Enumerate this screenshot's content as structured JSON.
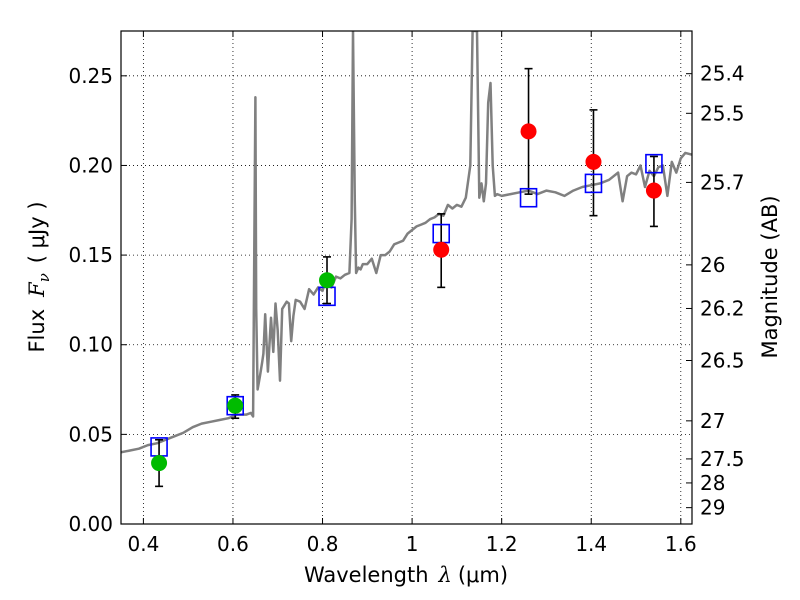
{
  "chart_data": {
    "type": "line",
    "xlabel_text": "Wavelength",
    "xlabel_symbol": "λ",
    "xlabel_unit": "(μm)",
    "ylabel_text": "Flux",
    "ylabel_symbol": "F",
    "ylabel_subscript": "ν",
    "ylabel_unit": "( μJy )",
    "y2label": "Magnitude (AB)",
    "xlim": [
      0.35,
      1.625
    ],
    "ylim": [
      0.0,
      0.275
    ],
    "grid": true,
    "xticks": [
      0.4,
      0.6,
      0.8,
      1.0,
      1.2,
      1.4,
      1.6
    ],
    "xtick_labels": [
      "0.4",
      "0.6",
      "0.8",
      "1",
      "1.2",
      "1.4",
      "1.6"
    ],
    "yticks": [
      0.0,
      0.05,
      0.1,
      0.15,
      0.2,
      0.25
    ],
    "ytick_labels": [
      "0.00",
      "0.05",
      "0.10",
      "0.15",
      "0.20",
      "0.25"
    ],
    "mag_ticks": [
      25.4,
      25.5,
      25.7,
      26,
      26.2,
      26.5,
      27,
      27.5,
      28,
      29
    ],
    "mag_tick_labels": [
      "25.4",
      "25.5",
      "25.7",
      "26",
      "26.2",
      "26.5",
      "27",
      "27.5",
      "28",
      "29"
    ],
    "colors": {
      "spectrum": "#808080",
      "model_box": "#0000ff",
      "obs_green": "#00bb00",
      "obs_red": "#ff0000",
      "errorbar": "#000000"
    },
    "spectrum": {
      "x": [
        0.35,
        0.37,
        0.39,
        0.41,
        0.43,
        0.45,
        0.47,
        0.49,
        0.51,
        0.53,
        0.55,
        0.57,
        0.59,
        0.61,
        0.63,
        0.64,
        0.645,
        0.648,
        0.65,
        0.652,
        0.655,
        0.66,
        0.665,
        0.668,
        0.672,
        0.678,
        0.685,
        0.69,
        0.695,
        0.7,
        0.705,
        0.71,
        0.72,
        0.725,
        0.73,
        0.735,
        0.74,
        0.75,
        0.76,
        0.77,
        0.78,
        0.79,
        0.8,
        0.805,
        0.81,
        0.82,
        0.83,
        0.84,
        0.85,
        0.86,
        0.865,
        0.868,
        0.872,
        0.875,
        0.88,
        0.885,
        0.89,
        0.9,
        0.91,
        0.92,
        0.93,
        0.94,
        0.95,
        0.96,
        0.97,
        0.98,
        0.99,
        1.0,
        1.01,
        1.02,
        1.03,
        1.04,
        1.05,
        1.06,
        1.07,
        1.08,
        1.09,
        1.1,
        1.11,
        1.12,
        1.13,
        1.135,
        1.14,
        1.145,
        1.15,
        1.155,
        1.16,
        1.165,
        1.17,
        1.175,
        1.18,
        1.185,
        1.19,
        1.2,
        1.22,
        1.24,
        1.26,
        1.28,
        1.3,
        1.32,
        1.34,
        1.36,
        1.38,
        1.4,
        1.42,
        1.44,
        1.46,
        1.47,
        1.48,
        1.49,
        1.5,
        1.51,
        1.52,
        1.53,
        1.54,
        1.55,
        1.56,
        1.57,
        1.58,
        1.59,
        1.6,
        1.61,
        1.625
      ],
      "y": [
        0.04,
        0.041,
        0.042,
        0.044,
        0.045,
        0.047,
        0.049,
        0.051,
        0.054,
        0.056,
        0.057,
        0.058,
        0.059,
        0.061,
        0.061,
        0.062,
        0.06,
        0.17,
        0.238,
        0.12,
        0.075,
        0.082,
        0.09,
        0.095,
        0.117,
        0.085,
        0.115,
        0.096,
        0.123,
        0.108,
        0.08,
        0.12,
        0.124,
        0.123,
        0.102,
        0.116,
        0.125,
        0.124,
        0.12,
        0.131,
        0.128,
        0.132,
        0.13,
        0.134,
        0.133,
        0.132,
        0.138,
        0.137,
        0.139,
        0.14,
        0.17,
        0.275,
        0.18,
        0.14,
        0.143,
        0.142,
        0.145,
        0.145,
        0.148,
        0.14,
        0.15,
        0.15,
        0.152,
        0.156,
        0.157,
        0.158,
        0.162,
        0.164,
        0.166,
        0.167,
        0.168,
        0.17,
        0.171,
        0.173,
        0.172,
        0.178,
        0.176,
        0.178,
        0.177,
        0.182,
        0.2,
        0.275,
        0.275,
        0.275,
        0.182,
        0.19,
        0.18,
        0.19,
        0.235,
        0.246,
        0.2,
        0.183,
        0.184,
        0.183,
        0.184,
        0.185,
        0.186,
        0.184,
        0.186,
        0.185,
        0.183,
        0.186,
        0.188,
        0.189,
        0.19,
        0.192,
        0.196,
        0.18,
        0.194,
        0.196,
        0.195,
        0.2,
        0.188,
        0.197,
        0.194,
        0.199,
        0.2,
        0.183,
        0.202,
        0.196,
        0.204,
        0.207,
        0.206
      ]
    },
    "model_points": {
      "x": [
        0.435,
        0.605,
        0.81,
        1.065,
        1.26,
        1.405,
        1.54
      ],
      "y": [
        0.043,
        0.066,
        0.127,
        0.162,
        0.182,
        0.19,
        0.201
      ]
    },
    "obs_points": [
      {
        "x": 0.435,
        "y": 0.034,
        "yerr_low": 0.021,
        "yerr_high": 0.047,
        "group": "green"
      },
      {
        "x": 0.605,
        "y": 0.066,
        "yerr_low": 0.059,
        "yerr_high": 0.072,
        "group": "green"
      },
      {
        "x": 0.81,
        "y": 0.136,
        "yerr_low": 0.123,
        "yerr_high": 0.149,
        "group": "green"
      },
      {
        "x": 1.065,
        "y": 0.153,
        "yerr_low": 0.132,
        "yerr_high": 0.173,
        "group": "red"
      },
      {
        "x": 1.26,
        "y": 0.219,
        "yerr_low": 0.184,
        "yerr_high": 0.254,
        "group": "red"
      },
      {
        "x": 1.405,
        "y": 0.202,
        "yerr_low": 0.172,
        "yerr_high": 0.231,
        "group": "red"
      },
      {
        "x": 1.54,
        "y": 0.186,
        "yerr_low": 0.166,
        "yerr_high": 0.205,
        "group": "red"
      }
    ]
  }
}
